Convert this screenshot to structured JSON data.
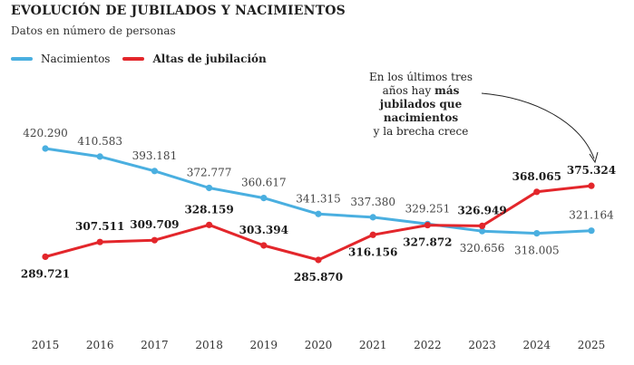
{
  "chart_data": {
    "type": "line",
    "title": "EVOLUCIÓN DE JUBILADOS Y NACIMIENTOS",
    "subtitle": "Datos en número de personas",
    "categories": [
      "2015",
      "2016",
      "2017",
      "2018",
      "2019",
      "2020",
      "2021",
      "2022",
      "2023",
      "2024",
      "2025"
    ],
    "series": [
      {
        "name": "Nacimientos",
        "color": "#4aafe0",
        "values": [
          420290,
          410583,
          393181,
          372777,
          360617,
          341315,
          337380,
          329251,
          320656,
          318005,
          321164
        ],
        "labels": [
          "420.290",
          "410.583",
          "393.181",
          "372.777",
          "360.617",
          "341.315",
          "337.380",
          "329.251",
          "320.656",
          "318.005",
          "321.164"
        ]
      },
      {
        "name": "Altas de jubilación",
        "color": "#e3262b",
        "values": [
          289721,
          307511,
          309709,
          328159,
          303394,
          285870,
          316156,
          327872,
          326949,
          368065,
          375324
        ],
        "labels": [
          "289.721",
          "307.511",
          "309.709",
          "328.159",
          "303.394",
          "285.870",
          "316.156",
          "327.872",
          "326.949",
          "368.065",
          "375.324"
        ]
      }
    ],
    "annotation": {
      "line1": "En los últimos tres",
      "line2_pre": "años hay ",
      "line2_bold": "más",
      "line3": "jubilados que",
      "line4": "nacimientos",
      "line5": "y la brecha crece"
    },
    "grid": false,
    "legend_position": "top-left"
  }
}
